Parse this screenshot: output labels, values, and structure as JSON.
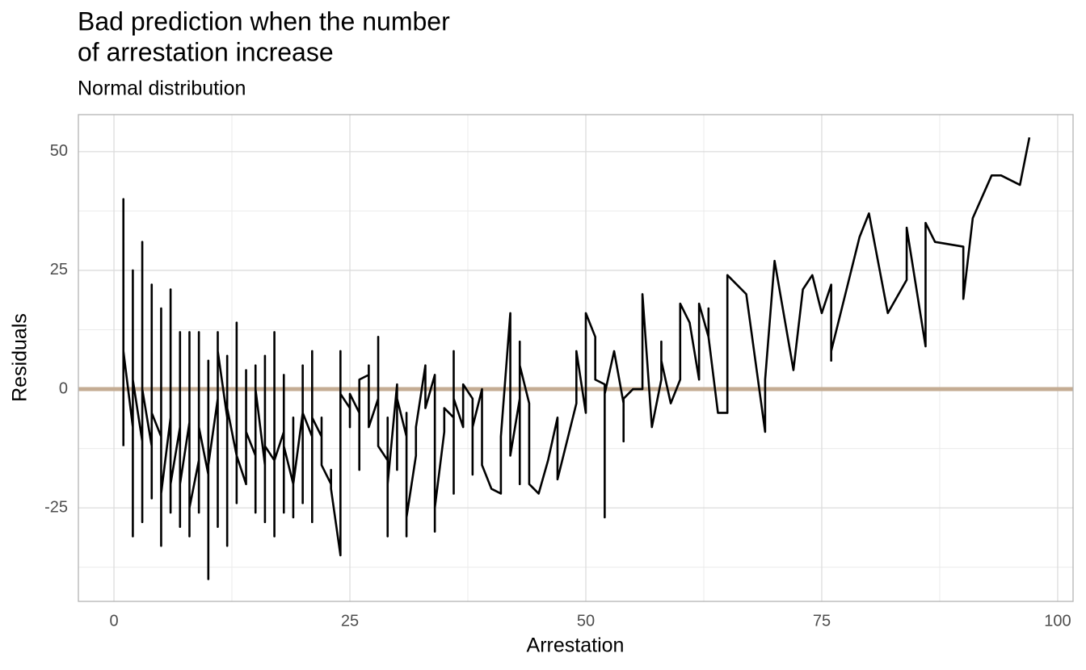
{
  "chart_data": {
    "type": "line",
    "title": [
      "Bad prediction when the number",
      "of arrestation increase"
    ],
    "subtitle": "Normal distribution",
    "x_label": "Arrestation",
    "y_label": "Residuals",
    "x": [
      1,
      1,
      1,
      2,
      2,
      2,
      2,
      3,
      3,
      3,
      3,
      4,
      4,
      4,
      4,
      5,
      5,
      5,
      5,
      6,
      6,
      6,
      6,
      7,
      7,
      7,
      7,
      8,
      8,
      8,
      8,
      9,
      9,
      9,
      9,
      10,
      10,
      10,
      10,
      11,
      11,
      11,
      11,
      12,
      12,
      12,
      12,
      13,
      13,
      13,
      13,
      14,
      14,
      14,
      14,
      15,
      15,
      15,
      15,
      16,
      16,
      16,
      16,
      17,
      17,
      17,
      17,
      18,
      18,
      18,
      18,
      19,
      19,
      19,
      19,
      20,
      20,
      20,
      20,
      21,
      21,
      21,
      21,
      22,
      22,
      22,
      23,
      23,
      23,
      24,
      24,
      24,
      25,
      25,
      25,
      26,
      26,
      26,
      27,
      27,
      27,
      28,
      28,
      28,
      29,
      29,
      29,
      29,
      30,
      30,
      30,
      31,
      31,
      31,
      31,
      32,
      32,
      33,
      33,
      34,
      34,
      34,
      35,
      35,
      36,
      36,
      36,
      36,
      37,
      37,
      38,
      38,
      38,
      39,
      39,
      40,
      41,
      41,
      42,
      42,
      43,
      43,
      43,
      43,
      44,
      44,
      45,
      46,
      47,
      47,
      49,
      49,
      50,
      50,
      51,
      51,
      52,
      52,
      52,
      53,
      54,
      54,
      54,
      55,
      56,
      56,
      57,
      58,
      58,
      58,
      59,
      60,
      60,
      61,
      62,
      62,
      63,
      63,
      63,
      64,
      65,
      65,
      67,
      69,
      69,
      70,
      72,
      73,
      74,
      75,
      76,
      76,
      76,
      79,
      80,
      82,
      84,
      84,
      86,
      86,
      87,
      90,
      90,
      91,
      93,
      94,
      96,
      97
    ],
    "values": [
      -12,
      40,
      8,
      -8,
      25,
      -31,
      2,
      -11,
      31,
      -28,
      0,
      -12,
      22,
      -23,
      -5,
      -10,
      17,
      -33,
      -22,
      -6,
      21,
      -26,
      -20,
      -8,
      12,
      -29,
      -20,
      -7,
      12,
      -31,
      -25,
      -15,
      12,
      -26,
      -8,
      -18,
      6,
      -40,
      -16,
      -2,
      12,
      -29,
      8,
      -6,
      7,
      -33,
      -4,
      -14,
      14,
      -24,
      -14,
      -20,
      4,
      -20,
      -9,
      -14,
      5,
      -26,
      0,
      -16,
      7,
      -28,
      -12,
      -15,
      12,
      -31,
      -15,
      -9,
      3,
      -26,
      -12,
      -20,
      -6,
      -27,
      -20,
      -5,
      5,
      -24,
      -5,
      -10,
      8,
      -28,
      -6,
      -10,
      -6,
      -16,
      -20,
      -17,
      -21,
      -35,
      8,
      -1,
      -4,
      -8,
      -1,
      -5,
      -17,
      2,
      3,
      5,
      -8,
      -2,
      11,
      -12,
      -15,
      -6,
      -31,
      -20,
      1,
      -17,
      -2,
      -10,
      -5,
      -31,
      -27,
      -14,
      -8,
      5,
      -4,
      3,
      -30,
      -25,
      -9,
      -4,
      -6,
      8,
      -22,
      -2,
      -8,
      1,
      -2,
      -18,
      -8,
      0,
      -16,
      -21,
      -22,
      -10,
      16,
      -14,
      -2,
      10,
      -20,
      5,
      -3,
      -20,
      -22,
      -15,
      -6,
      -19,
      -3,
      8,
      -5,
      16,
      11,
      2,
      1,
      -27,
      -1,
      8,
      -3,
      -11,
      -2,
      0,
      0,
      20,
      -8,
      2,
      10,
      6,
      -3,
      2,
      18,
      14,
      2,
      18,
      11,
      17,
      11,
      -5,
      -5,
      24,
      20,
      -9,
      2,
      27,
      4,
      21,
      24,
      16,
      22,
      6,
      8,
      32,
      37,
      16,
      23,
      34,
      9,
      35,
      31,
      30,
      19,
      36,
      45,
      45,
      43,
      53
    ],
    "color": "#000000",
    "hline": 0,
    "hline_color": "#c4ac93",
    "xlim": [
      -3.77,
      101.63
    ],
    "ylim": [
      -44.7,
      57.8
    ],
    "xticks": [
      0,
      25,
      50,
      75,
      100
    ],
    "yticks": [
      -25,
      0,
      25,
      50
    ],
    "xminor": [
      12.5,
      37.5,
      62.5,
      87.5
    ],
    "yminor": [
      -37.5,
      -12.5,
      12.5,
      37.5
    ],
    "grid": true
  }
}
